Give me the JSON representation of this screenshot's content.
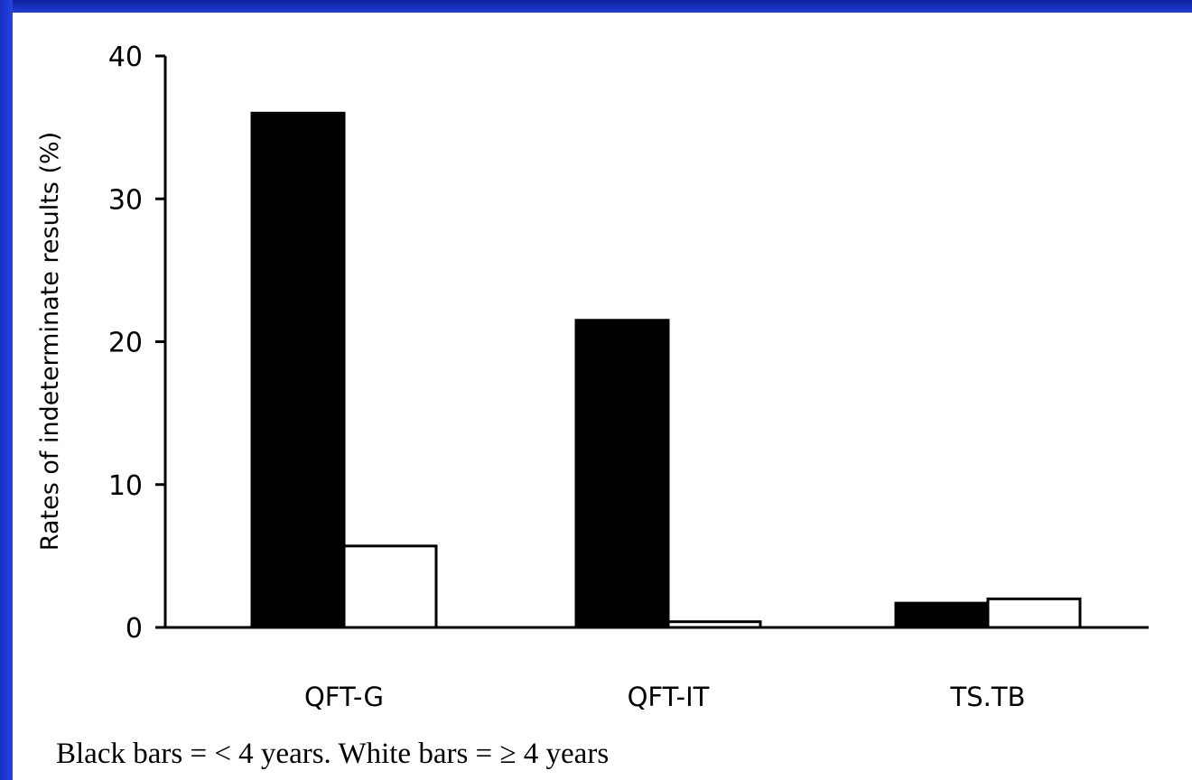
{
  "colors": {
    "background_frame": "#1a33c8",
    "panel": "#ffffff",
    "series_under_4": "#000000",
    "series_4_and_over": "#ffffff"
  },
  "caption": "Black bars = < 4 years.  White bars = ≥ 4 years",
  "chart_data": {
    "type": "bar",
    "categories": [
      "QFT-G",
      "QFT-IT",
      "TS.TB"
    ],
    "series": [
      {
        "values": [
          36,
          21.5,
          1.7
        ],
        "color": "#000000"
      },
      {
        "values": [
          5.7,
          0.4,
          2.0
        ],
        "color": "#ffffff"
      }
    ],
    "title": "",
    "xlabel": "",
    "ylabel": "Rates of indeterminate results (%)",
    "ylim": [
      0,
      40
    ],
    "yticks": [
      0,
      10,
      20,
      30,
      40
    ],
    "grid": false,
    "legend": "none"
  }
}
